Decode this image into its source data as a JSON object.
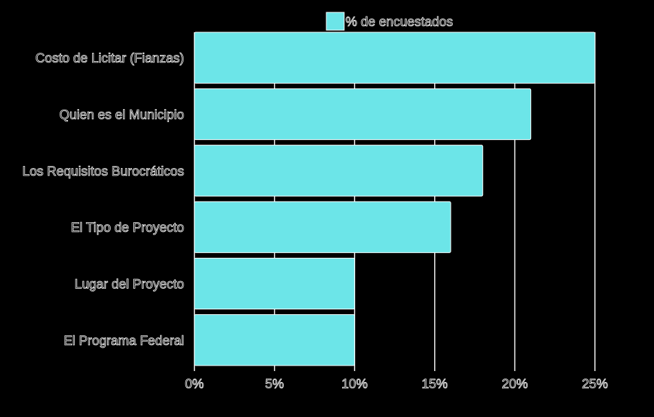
{
  "chart_data": {
    "type": "bar",
    "orientation": "horizontal",
    "title": "",
    "xlabel": "",
    "ylabel": "",
    "categories": [
      "Costo de Licitar (Fianzas)",
      "Quien es el Municipio",
      "Los Requisitos Burocráticos",
      "El Tipo de Proyecto",
      "Lugar del Proyecto",
      "El Programa Federal"
    ],
    "series": [
      {
        "name": "% de encuestados",
        "values": [
          25,
          21,
          18,
          16,
          10,
          10
        ],
        "color": "#6ce5e8"
      }
    ],
    "xlim": [
      0,
      25
    ],
    "xticks": [
      0,
      5,
      10,
      15,
      20,
      25
    ],
    "xtick_labels": [
      "0%",
      "5%",
      "10%",
      "15%",
      "20%",
      "25%"
    ],
    "grid": true,
    "legend": "top"
  }
}
